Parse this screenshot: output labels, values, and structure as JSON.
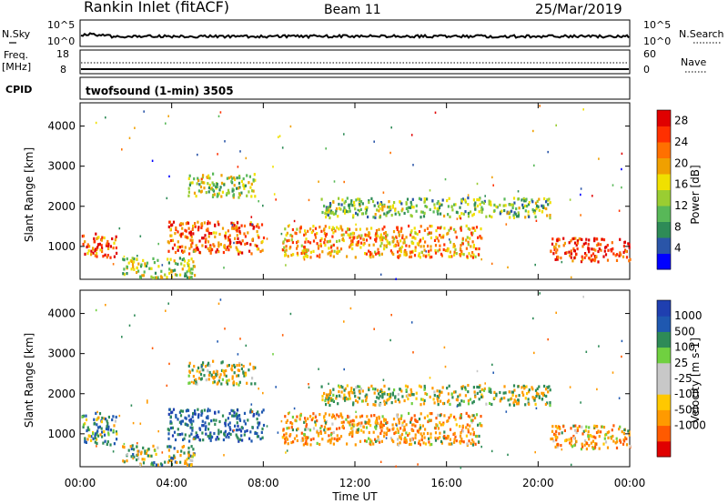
{
  "header": {
    "station": "Rankin Inlet (fitACF)",
    "beam": "Beam 11",
    "date": "25/Mar/2019"
  },
  "noise_panel": {
    "left_label": "N.Sky",
    "left_top": "10^5",
    "left_bottom": "10^0",
    "right_top": "10^5",
    "right_bottom": "10^0",
    "right_label": "N.Search"
  },
  "freq_panel": {
    "left_label_1": "Freq.",
    "left_label_2": "[MHz]",
    "left_top": "18",
    "left_bottom": "8",
    "right_top": "60",
    "right_bottom": "0",
    "right_label": "Nave"
  },
  "cpid_panel": {
    "label": "CPID",
    "program": "twofsound (1-min) 3505"
  },
  "colors": {
    "power_scale": [
      "#0000ff",
      "#2a55a8",
      "#2e8b57",
      "#58b858",
      "#9acd32",
      "#f0e000",
      "#f0a000",
      "#ff7000",
      "#ff3000",
      "#e00000"
    ],
    "velocity_scale": [
      "#e00000",
      "#ff5a00",
      "#ff9a00",
      "#ffc800",
      "#c8c8c8",
      "#c8c8c8",
      "#70d040",
      "#2e8b57",
      "#1f58b0",
      "#1f3fb0"
    ]
  },
  "chart_data": [
    {
      "type": "heatmap",
      "title": "Power",
      "ylabel": "Slant Range [km]",
      "ylim": [
        180,
        4580
      ],
      "xlim_hours": [
        0,
        24
      ],
      "yticks": [
        "1000",
        "2000",
        "3000",
        "4000"
      ],
      "colorbar_label": "Power [dB]",
      "colorbar_ticks": [
        "4",
        "8",
        "12",
        "16",
        "20",
        "24",
        "28"
      ],
      "colorbar_range": [
        0,
        30
      ],
      "echo_regions": [
        {
          "t_start": 0.0,
          "t_end": 1.6,
          "range_lo": 700,
          "range_hi": 1300,
          "value": 24
        },
        {
          "t_start": 3.8,
          "t_end": 8.0,
          "range_lo": 800,
          "range_hi": 1600,
          "value": 24
        },
        {
          "t_start": 4.7,
          "t_end": 7.6,
          "range_lo": 2200,
          "range_hi": 2800,
          "value": 14
        },
        {
          "t_start": 8.8,
          "t_end": 17.5,
          "range_lo": 700,
          "range_hi": 1500,
          "value": 20
        },
        {
          "t_start": 10.5,
          "t_end": 20.5,
          "range_lo": 1700,
          "range_hi": 2200,
          "value": 12
        },
        {
          "t_start": 20.5,
          "t_end": 24.0,
          "range_lo": 600,
          "range_hi": 1200,
          "value": 26
        },
        {
          "t_start": 1.8,
          "t_end": 5.0,
          "range_lo": 200,
          "range_hi": 700,
          "value": 14
        }
      ]
    },
    {
      "type": "heatmap",
      "title": "Velocity",
      "ylabel": "Slant Range [km]",
      "xlabel": "Time UT",
      "ylim": [
        180,
        4580
      ],
      "xlim_hours": [
        0,
        24
      ],
      "xticks": [
        "00:00",
        "04:00",
        "08:00",
        "12:00",
        "16:00",
        "20:00",
        "00:00"
      ],
      "yticks": [
        "1000",
        "2000",
        "3000",
        "4000"
      ],
      "colorbar_label": "Velocity [m s-1]",
      "colorbar_ticks": [
        "1000",
        "500",
        "100",
        "25",
        "-25",
        "-100",
        "-500",
        "-1000"
      ],
      "echo_regions": [
        {
          "t_start": 0.0,
          "t_end": 1.6,
          "range_lo": 700,
          "range_hi": 1500,
          "value": 300
        },
        {
          "t_start": 3.8,
          "t_end": 8.0,
          "range_lo": 800,
          "range_hi": 1600,
          "value": 700
        },
        {
          "t_start": 4.7,
          "t_end": 7.6,
          "range_lo": 2200,
          "range_hi": 2800,
          "value": 0
        },
        {
          "t_start": 8.8,
          "t_end": 17.5,
          "range_lo": 700,
          "range_hi": 1500,
          "value": -300
        },
        {
          "t_start": 10.5,
          "t_end": 20.5,
          "range_lo": 1700,
          "range_hi": 2200,
          "value": 0
        },
        {
          "t_start": 20.5,
          "t_end": 24.0,
          "range_lo": 600,
          "range_hi": 1200,
          "value": -300
        },
        {
          "t_start": 1.8,
          "t_end": 5.0,
          "range_lo": 200,
          "range_hi": 700,
          "value": 150
        }
      ]
    }
  ]
}
